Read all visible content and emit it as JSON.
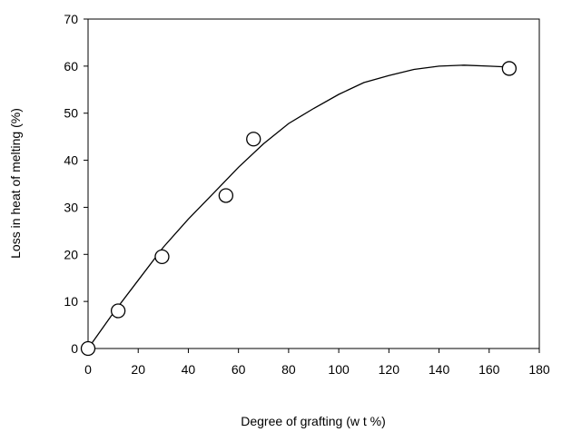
{
  "chart_data": {
    "type": "scatter",
    "title": "",
    "xlabel": "Degree of grafting (w t %)",
    "ylabel": "Loss in heat of melting (%)",
    "xlim": [
      0,
      180
    ],
    "ylim": [
      0,
      70
    ],
    "x_ticks": [
      0,
      20,
      40,
      60,
      80,
      100,
      120,
      140,
      160,
      180
    ],
    "y_ticks": [
      0,
      10,
      20,
      30,
      40,
      50,
      60,
      70
    ],
    "x_tick_labels": [
      "0",
      "20",
      "40",
      "60",
      "80",
      "100",
      "120",
      "140",
      "160",
      "180"
    ],
    "y_tick_labels": [
      "0",
      "10",
      "20",
      "30",
      "40",
      "50",
      "60",
      "70"
    ],
    "grid": false,
    "series": [
      {
        "kind": "markers",
        "marker": "open-circle",
        "x": [
          0,
          12,
          29.5,
          55,
          66,
          168
        ],
        "y": [
          0,
          8,
          19.5,
          32.5,
          44.5,
          59.5
        ]
      },
      {
        "kind": "trendline",
        "x": [
          0,
          10,
          20,
          30,
          40,
          50,
          60,
          70,
          80,
          90,
          100,
          110,
          120,
          130,
          140,
          150,
          160,
          168
        ],
        "y": [
          0,
          7.5,
          14.5,
          21.5,
          27.5,
          33,
          38.5,
          43.5,
          47.8,
          51,
          54,
          56.5,
          58,
          59.3,
          60,
          60.2,
          60,
          59.8
        ]
      }
    ],
    "colors": {
      "axis": "#000000",
      "line": "#000000",
      "marker_fill": "#ffffff"
    }
  }
}
